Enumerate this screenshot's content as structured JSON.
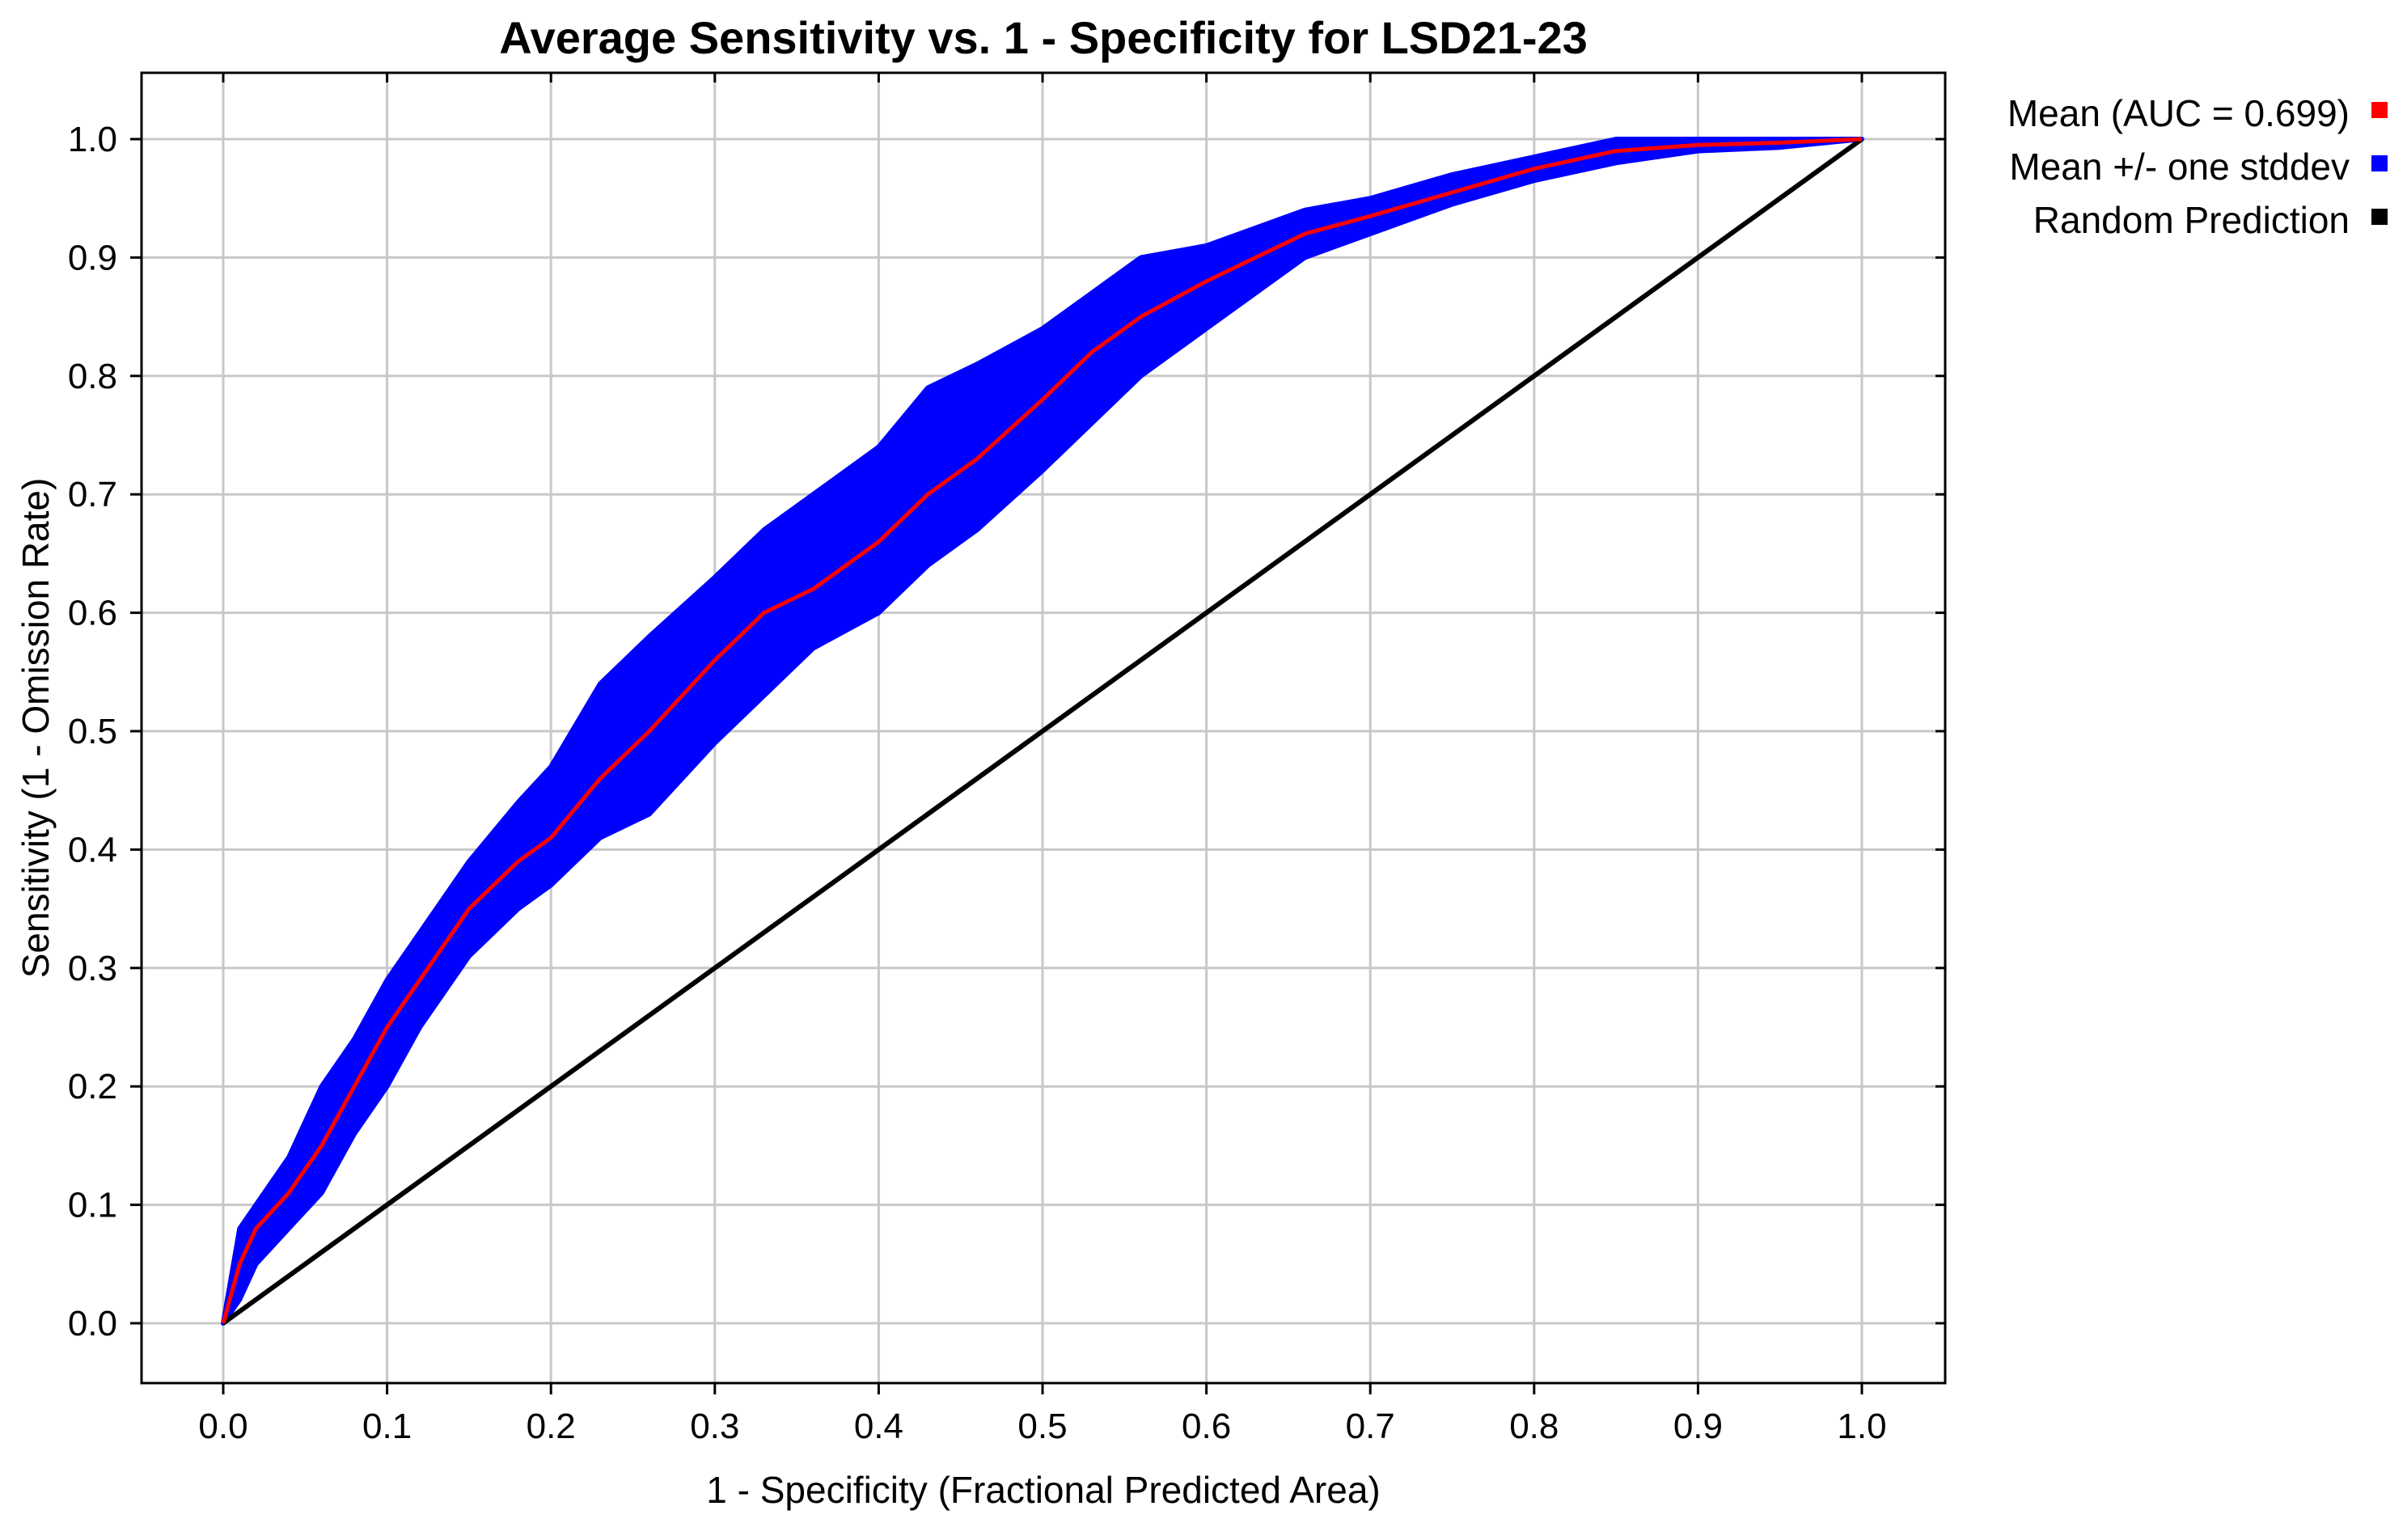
{
  "chart_data": {
    "type": "area",
    "title": "Average Sensitivity vs. 1 - Specificity for LSD21-23",
    "xlabel": "1 - Specificity (Fractional Predicted Area)",
    "ylabel": "Sensitivity (1 - Omission Rate)",
    "xlim": [
      0.0,
      1.0
    ],
    "ylim": [
      0.0,
      1.0
    ],
    "x_ticks": [
      "0.0",
      "0.1",
      "0.2",
      "0.3",
      "0.4",
      "0.5",
      "0.6",
      "0.7",
      "0.8",
      "0.9",
      "1.0"
    ],
    "y_ticks": [
      "0.0",
      "0.1",
      "0.2",
      "0.3",
      "0.4",
      "0.5",
      "0.6",
      "0.7",
      "0.8",
      "0.9",
      "1.0"
    ],
    "grid": true,
    "legend_position": "right, outside top",
    "colors": {
      "mean": "#ff0000",
      "band": "#0000ff",
      "random": "#000000",
      "grid": "#c8c8c8"
    },
    "series": [
      {
        "name": "Mean (AUC = 0.699)",
        "role": "mean",
        "x": [
          0.0,
          0.01,
          0.02,
          0.04,
          0.06,
          0.08,
          0.1,
          0.12,
          0.15,
          0.18,
          0.2,
          0.23,
          0.26,
          0.3,
          0.33,
          0.36,
          0.4,
          0.43,
          0.46,
          0.5,
          0.53,
          0.56,
          0.6,
          0.63,
          0.66,
          0.7,
          0.75,
          0.8,
          0.85,
          0.9,
          0.95,
          1.0
        ],
        "y": [
          0.0,
          0.05,
          0.08,
          0.11,
          0.15,
          0.2,
          0.25,
          0.29,
          0.35,
          0.39,
          0.41,
          0.46,
          0.5,
          0.56,
          0.6,
          0.62,
          0.66,
          0.7,
          0.73,
          0.78,
          0.82,
          0.85,
          0.88,
          0.9,
          0.92,
          0.935,
          0.955,
          0.975,
          0.99,
          0.995,
          0.997,
          1.0
        ]
      },
      {
        "name": "Mean +/- one stddev",
        "role": "band",
        "x": [
          0.0,
          0.01,
          0.02,
          0.04,
          0.06,
          0.08,
          0.1,
          0.12,
          0.15,
          0.18,
          0.2,
          0.23,
          0.26,
          0.3,
          0.33,
          0.36,
          0.4,
          0.43,
          0.46,
          0.5,
          0.53,
          0.56,
          0.6,
          0.63,
          0.66,
          0.7,
          0.75,
          0.8,
          0.85,
          0.9,
          0.95,
          1.0
        ],
        "y_upper": [
          0.0,
          0.08,
          0.1,
          0.14,
          0.2,
          0.24,
          0.29,
          0.33,
          0.39,
          0.44,
          0.47,
          0.54,
          0.58,
          0.63,
          0.67,
          0.7,
          0.74,
          0.79,
          0.81,
          0.84,
          0.87,
          0.9,
          0.91,
          0.925,
          0.94,
          0.95,
          0.97,
          0.985,
          1.0,
          1.0,
          1.0,
          1.0
        ],
        "y_lower": [
          0.0,
          0.02,
          0.05,
          0.08,
          0.11,
          0.16,
          0.2,
          0.25,
          0.31,
          0.35,
          0.37,
          0.41,
          0.43,
          0.49,
          0.53,
          0.57,
          0.6,
          0.64,
          0.67,
          0.72,
          0.76,
          0.8,
          0.84,
          0.87,
          0.9,
          0.92,
          0.945,
          0.965,
          0.98,
          0.99,
          0.993,
          1.0
        ]
      },
      {
        "name": "Random Prediction",
        "role": "random",
        "x": [
          0.0,
          1.0
        ],
        "y": [
          0.0,
          1.0
        ]
      }
    ]
  }
}
